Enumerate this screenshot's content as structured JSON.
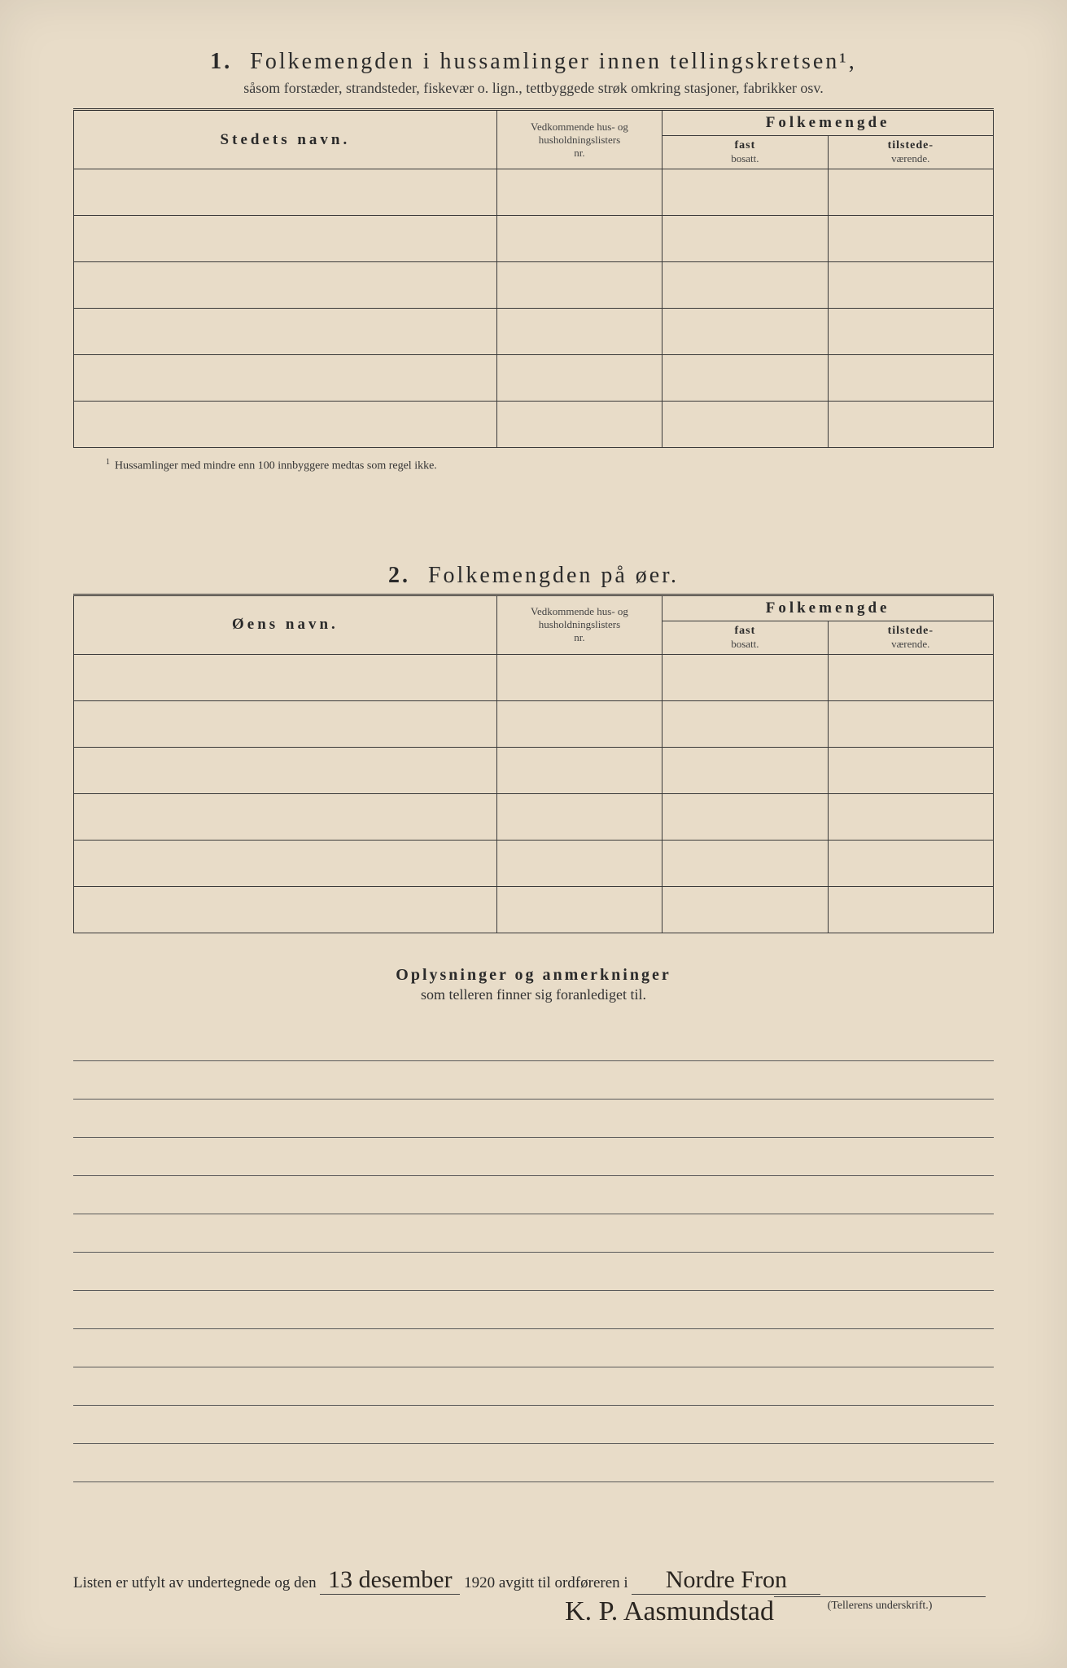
{
  "section1": {
    "number": "1.",
    "title": "Folkemengden i hussamlinger innen tellingskretsen¹,",
    "subtitle": "såsom forstæder, strandsteder, fiskevær o. lign., tettbyggede strøk omkring stasjoner, fabrikker osv.",
    "col_name": "Stedets navn.",
    "col_list_l1": "Vedkommende hus- og",
    "col_list_l2": "husholdningslisters",
    "col_list_l3": "nr.",
    "col_pop": "Folkemengde",
    "col_fast_l1": "fast",
    "col_fast_l2": "bosatt.",
    "col_tilst_l1": "tilstede-",
    "col_tilst_l2": "værende.",
    "footnote": "Hussamlinger med mindre enn 100 innbyggere medtas som regel ikke."
  },
  "section2": {
    "number": "2.",
    "title": "Folkemengden på øer.",
    "col_name": "Øens navn.",
    "col_list_l1": "Vedkommende hus- og",
    "col_list_l2": "husholdningslisters",
    "col_list_l3": "nr.",
    "col_pop": "Folkemengde",
    "col_fast_l1": "fast",
    "col_fast_l2": "bosatt.",
    "col_tilst_l1": "tilstede-",
    "col_tilst_l2": "værende."
  },
  "remarks": {
    "line1": "Oplysninger og anmerkninger",
    "line2": "som telleren finner sig foranlediget til."
  },
  "footer": {
    "text_a": "Listen er utfylt av undertegnede og den",
    "date_hand": "13 desember",
    "year": "1920",
    "text_b": "avgitt til ordføreren i",
    "place_hand": "Nordre Fron",
    "signature": "K. P. Aasmundstad",
    "sign_caption": "(Tellerens underskrift.)"
  },
  "layout": {
    "blank_rows": 6,
    "note_lines": 12
  }
}
